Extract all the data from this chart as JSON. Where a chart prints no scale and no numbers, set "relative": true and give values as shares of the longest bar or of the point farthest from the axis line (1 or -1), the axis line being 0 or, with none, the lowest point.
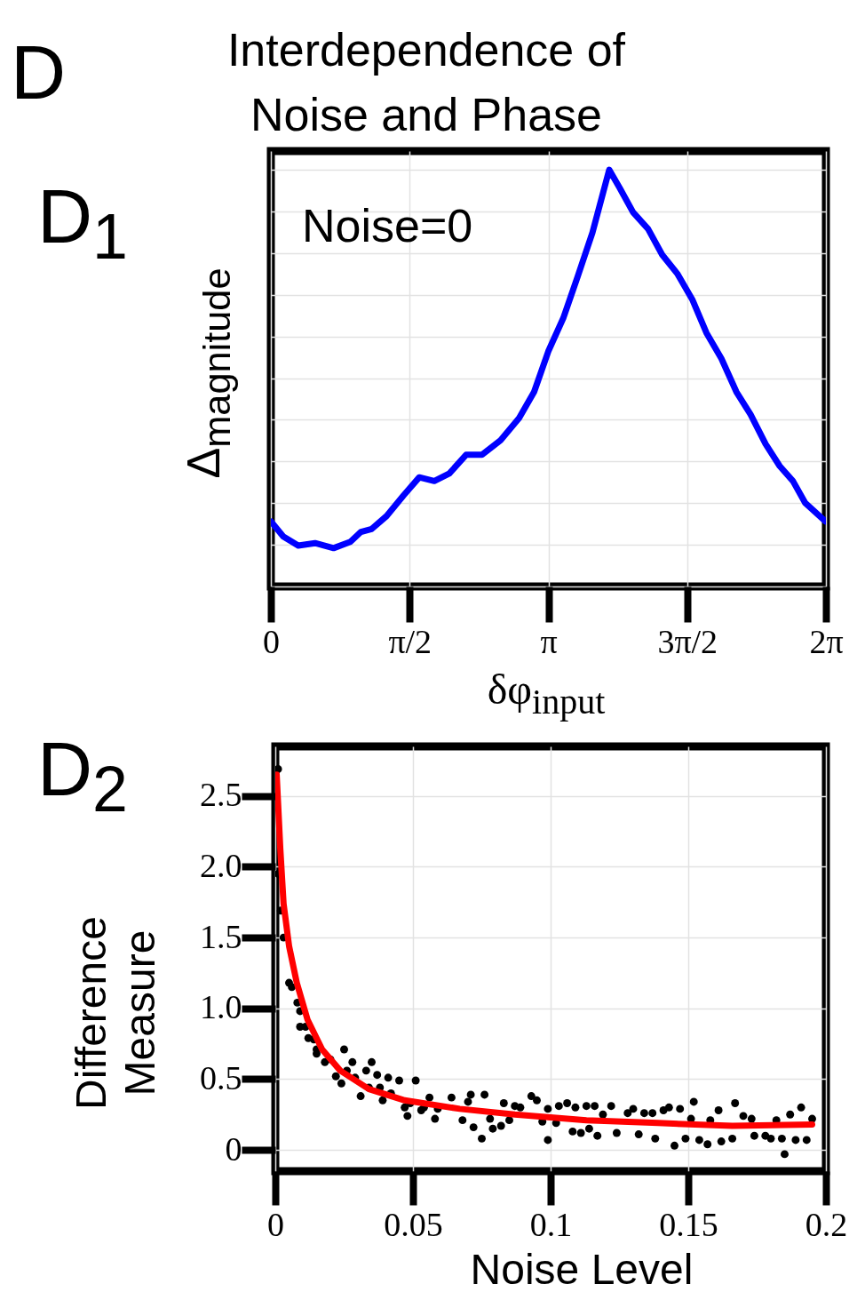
{
  "chart_data": [
    {
      "type": "line",
      "title": "Interdependence of Noise and Phase",
      "xlabel": "δφ$_{input}$",
      "ylabel": "Δ$_{magnitude}$",
      "annotations": [
        "D",
        "D$_{1}$",
        "Noise=0"
      ],
      "relative": true,
      "grid": true,
      "x": [
        0,
        0.14,
        0.31,
        0.5,
        0.71,
        0.9,
        1.02,
        1.14,
        1.31,
        1.5,
        1.68,
        1.85,
        2.02,
        2.21,
        2.39,
        2.6,
        2.81,
        2.98,
        3.14,
        3.31,
        3.47,
        3.64,
        3.83,
        3.95,
        4.1,
        4.27,
        4.43,
        4.6,
        4.77,
        4.93,
        5.1,
        5.27,
        5.43,
        5.6,
        5.76,
        5.91,
        6.05,
        6.28
      ],
      "series": [
        {
          "color": "#0000ff",
          "values": [
            0.156,
            0.12,
            0.098,
            0.104,
            0.092,
            0.107,
            0.131,
            0.138,
            0.169,
            0.218,
            0.262,
            0.253,
            0.271,
            0.316,
            0.316,
            0.351,
            0.404,
            0.467,
            0.564,
            0.644,
            0.742,
            0.849,
            1.0,
            0.956,
            0.898,
            0.858,
            0.796,
            0.751,
            0.689,
            0.609,
            0.547,
            0.467,
            0.413,
            0.342,
            0.289,
            0.253,
            0.2,
            0.156
          ]
        }
      ],
      "xlim": [
        0,
        6.2832
      ],
      "xticks": [
        0,
        {
          "value": 1.5708,
          "label": "π/2"
        },
        {
          "value": 3.1416,
          "label": "π"
        },
        {
          "value": 4.7124,
          "label": "3π/2"
        },
        {
          "value": 6.2832,
          "label": "2π"
        }
      ]
    },
    {
      "type": "scatter",
      "xlabel": "Noise Level",
      "ylabel": "Difference Measure",
      "annotations": [
        "D$_{2}$"
      ],
      "grid": true,
      "series": [
        {
          "color": "#000000",
          "marker": "circle",
          "x": [
            0.001,
            0.001,
            0.002,
            0.003,
            0.005,
            0.006,
            0.008,
            0.009,
            0.009,
            0.011,
            0.012,
            0.014,
            0.015,
            0.015,
            0.018,
            0.02,
            0.022,
            0.024,
            0.025,
            0.026,
            0.028,
            0.029,
            0.031,
            0.033,
            0.034,
            0.035,
            0.037,
            0.038,
            0.039,
            0.041,
            0.042,
            0.045,
            0.047,
            0.048,
            0.049,
            0.051,
            0.053,
            0.054,
            0.056,
            0.058,
            0.059,
            0.064,
            0.068,
            0.07,
            0.071,
            0.072,
            0.075,
            0.076,
            0.078,
            0.079,
            0.082,
            0.083,
            0.085,
            0.087,
            0.089,
            0.093,
            0.095,
            0.097,
            0.099,
            0.099,
            0.102,
            0.103,
            0.106,
            0.108,
            0.109,
            0.111,
            0.113,
            0.114,
            0.116,
            0.117,
            0.119,
            0.122,
            0.124,
            0.128,
            0.13,
            0.132,
            0.134,
            0.137,
            0.138,
            0.141,
            0.143,
            0.145,
            0.147,
            0.149,
            0.151,
            0.152,
            0.154,
            0.157,
            0.158,
            0.161,
            0.162,
            0.166,
            0.167,
            0.17,
            0.173,
            0.174,
            0.178,
            0.18,
            0.182,
            0.184,
            0.185,
            0.187,
            0.189,
            0.191,
            0.193,
            0.195
          ],
          "values": [
            2.69,
            1.95,
            1.69,
            1.5,
            1.18,
            1.15,
            1.04,
            0.98,
            0.87,
            0.87,
            0.79,
            0.78,
            0.71,
            0.68,
            0.62,
            0.64,
            0.52,
            0.47,
            0.71,
            0.56,
            0.62,
            0.51,
            0.38,
            0.56,
            0.44,
            0.62,
            0.53,
            0.44,
            0.35,
            0.51,
            0.4,
            0.49,
            0.3,
            0.24,
            0.33,
            0.49,
            0.28,
            0.3,
            0.37,
            0.22,
            0.29,
            0.37,
            0.21,
            0.34,
            0.39,
            0.16,
            0.08,
            0.39,
            0.22,
            0.15,
            0.17,
            0.33,
            0.21,
            0.31,
            0.3,
            0.38,
            0.35,
            0.2,
            0.07,
            0.29,
            0.19,
            0.31,
            0.33,
            0.13,
            0.3,
            0.12,
            0.31,
            0.15,
            0.31,
            0.1,
            0.25,
            0.31,
            0.12,
            0.26,
            0.29,
            0.11,
            0.26,
            0.26,
            0.08,
            0.28,
            0.3,
            0.03,
            0.29,
            0.08,
            0.22,
            0.34,
            0.07,
            0.04,
            0.21,
            0.28,
            0.06,
            0.08,
            0.33,
            0.24,
            0.22,
            0.1,
            0.1,
            0.08,
            0.21,
            0.08,
            -0.03,
            0.25,
            0.07,
            0.3,
            0.07,
            0.22
          ]
        },
        {
          "type": "line",
          "color": "#ff0000",
          "x": [
            0.0005,
            0.0018,
            0.003,
            0.005,
            0.0078,
            0.0117,
            0.017,
            0.0236,
            0.034,
            0.047,
            0.067,
            0.087,
            0.113,
            0.139,
            0.166,
            0.195
          ],
          "values": [
            2.65,
            2.13,
            1.74,
            1.44,
            1.18,
            0.92,
            0.71,
            0.56,
            0.43,
            0.35,
            0.29,
            0.25,
            0.21,
            0.19,
            0.17,
            0.18
          ]
        }
      ],
      "xlim": [
        0,
        0.2
      ],
      "xticks": [
        0,
        0.05,
        0.1,
        0.15,
        0.2
      ],
      "ylim": [
        -0.15,
        2.85
      ],
      "yticks": [
        0,
        0.5,
        {
          "value": 1,
          "label": "1.0"
        },
        1.5,
        {
          "value": 2,
          "label": "2.0"
        },
        2.5
      ]
    }
  ]
}
